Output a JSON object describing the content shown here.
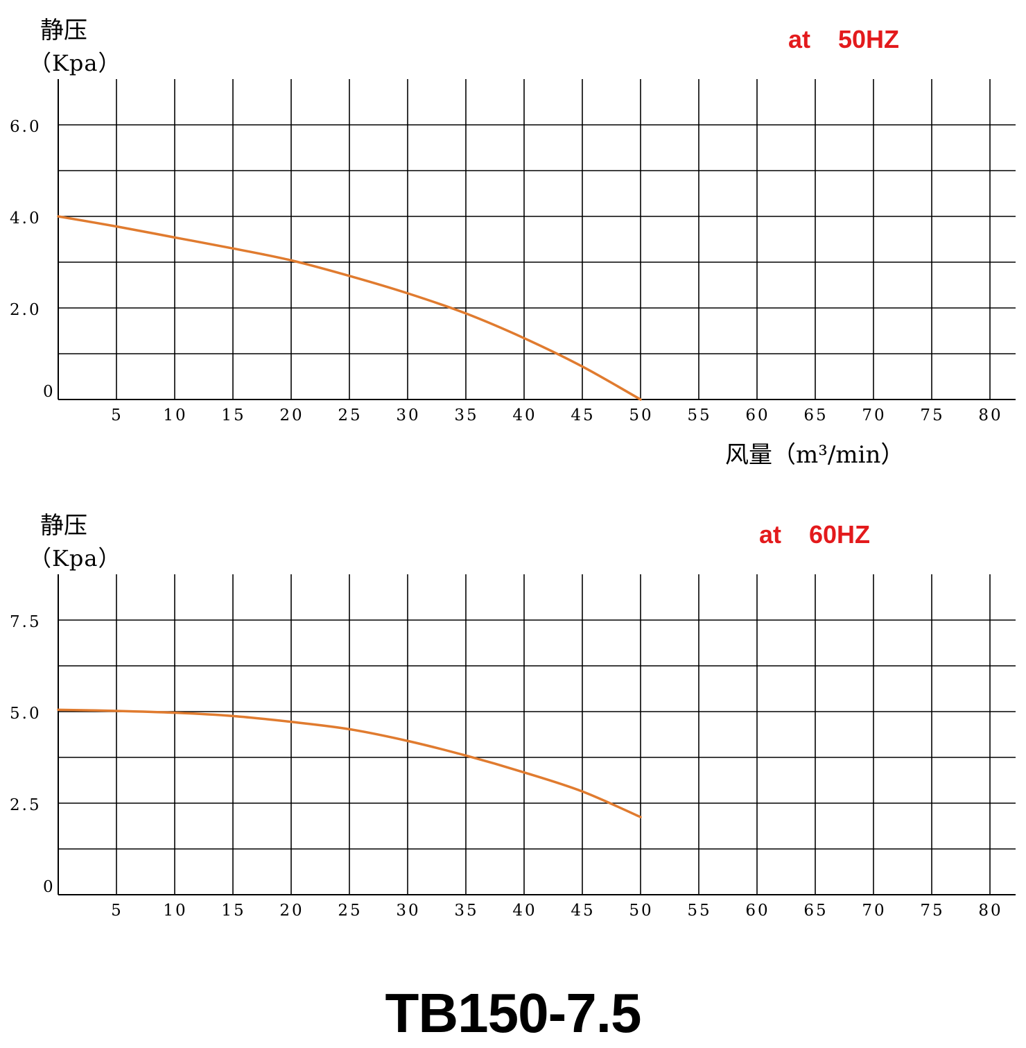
{
  "model_title": "TB150-7.5",
  "xlabel_text": "风量（m³/min）",
  "chart_data": [
    {
      "type": "line",
      "title": "at    50HZ",
      "ylabel": "静压",
      "ylabel_unit": "（Kpa）",
      "xlabel": "风量（m³/min）",
      "xlim": [
        0,
        82
      ],
      "ylim": [
        0,
        7
      ],
      "x_ticks": [
        5,
        10,
        15,
        20,
        25,
        30,
        35,
        40,
        45,
        50,
        55,
        60,
        65,
        70,
        75,
        80
      ],
      "y_tick_values": [
        0,
        2,
        4,
        6
      ],
      "y_tick_labels": [
        "0",
        "2.0",
        "4.0",
        "6.0"
      ],
      "grid": true,
      "y_grid_step": 1,
      "series": [
        {
          "color": "#e07b2f",
          "x": [
            0,
            5,
            10,
            15,
            20,
            25,
            30,
            35,
            40,
            45,
            50
          ],
          "y": [
            4.0,
            3.78,
            3.54,
            3.3,
            3.04,
            2.7,
            2.32,
            1.88,
            1.34,
            0.72,
            0.0
          ]
        }
      ]
    },
    {
      "type": "line",
      "title": "at    60HZ",
      "ylabel": "静压",
      "ylabel_unit": "（Kpa）",
      "xlabel": "",
      "xlim": [
        0,
        82
      ],
      "ylim": [
        0,
        8.75
      ],
      "x_ticks": [
        5,
        10,
        15,
        20,
        25,
        30,
        35,
        40,
        45,
        50,
        55,
        60,
        65,
        70,
        75,
        80
      ],
      "y_tick_values": [
        0,
        2.5,
        5.0,
        7.5
      ],
      "y_tick_labels": [
        "0",
        "2.5",
        "5.0",
        "7.5"
      ],
      "grid": true,
      "y_grid_step": 1.25,
      "series": [
        {
          "color": "#e07b2f",
          "x": [
            0,
            5,
            10,
            15,
            20,
            25,
            30,
            35,
            40,
            45,
            50
          ],
          "y": [
            5.05,
            5.02,
            4.97,
            4.88,
            4.72,
            4.52,
            4.2,
            3.8,
            3.34,
            2.82,
            2.12
          ]
        }
      ]
    }
  ]
}
